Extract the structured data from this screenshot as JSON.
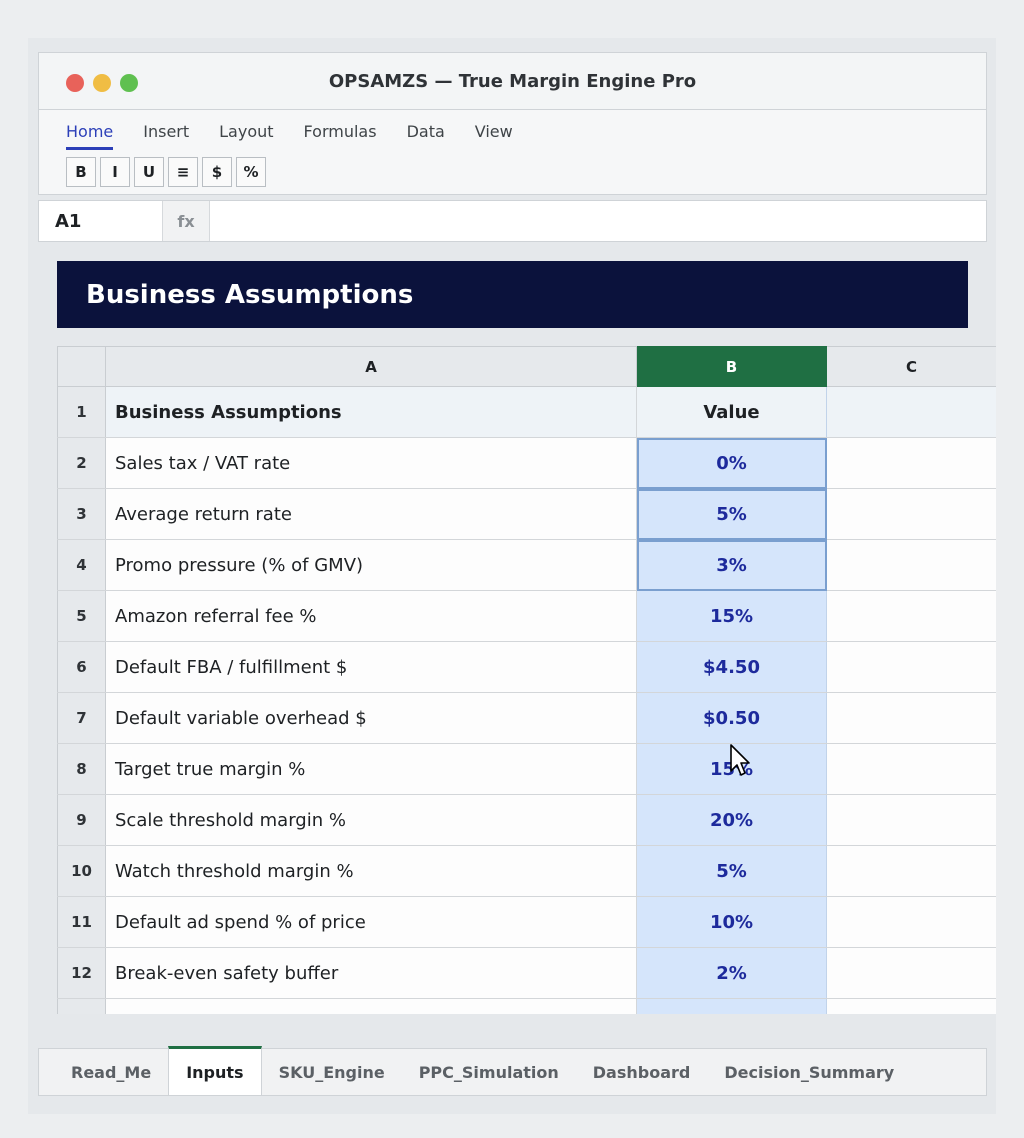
{
  "window": {
    "title": "OPSAMZS — True Margin Engine Pro"
  },
  "menu": {
    "items": [
      "Home",
      "Insert",
      "Layout",
      "Formulas",
      "Data",
      "View"
    ],
    "active": "Home"
  },
  "toolbar": {
    "buttons": [
      "B",
      "I",
      "U",
      "≡",
      "$",
      "%"
    ]
  },
  "formula_bar": {
    "cell_ref": "A1",
    "fx_label": "fx",
    "value": ""
  },
  "banner": {
    "title": "Business Assumptions"
  },
  "grid": {
    "columns": [
      "A",
      "B",
      "C"
    ],
    "selected_column": "B",
    "rows": [
      {
        "num": "1",
        "label": "Business Assumptions",
        "value": "Value"
      },
      {
        "num": "2",
        "label": "Sales tax / VAT rate",
        "value": "0%"
      },
      {
        "num": "3",
        "label": "Average return rate",
        "value": "5%"
      },
      {
        "num": "4",
        "label": "Promo pressure (% of GMV)",
        "value": "3%"
      },
      {
        "num": "5",
        "label": "Amazon referral fee %",
        "value": "15%"
      },
      {
        "num": "6",
        "label": "Default FBA / fulfillment $",
        "value": "$4.50"
      },
      {
        "num": "7",
        "label": "Default variable overhead $",
        "value": "$0.50"
      },
      {
        "num": "8",
        "label": "Target true margin %",
        "value": "15%"
      },
      {
        "num": "9",
        "label": "Scale threshold margin %",
        "value": "20%"
      },
      {
        "num": "10",
        "label": "Watch threshold margin %",
        "value": "5%"
      },
      {
        "num": "11",
        "label": "Default ad spend % of price",
        "value": "10%"
      },
      {
        "num": "12",
        "label": "Break-even safety buffer",
        "value": "2%"
      }
    ]
  },
  "sheet_tabs": {
    "tabs": [
      "Read_Me",
      "Inputs",
      "SKU_Engine",
      "PPC_Simulation",
      "Dashboard",
      "Decision_Summary"
    ],
    "active": "Inputs"
  }
}
